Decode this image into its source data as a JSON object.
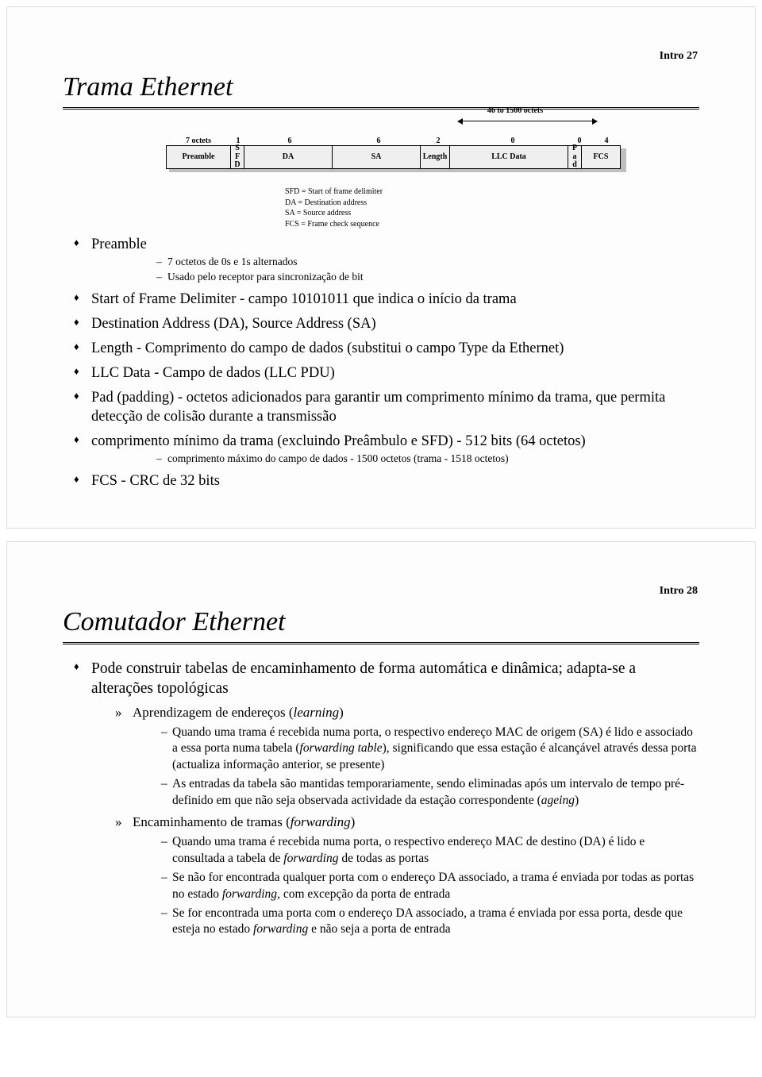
{
  "slide1": {
    "pageLabel": "Intro  27",
    "title": "Trama Ethernet",
    "frame": {
      "rangeLabel": "46 to 1500 octets",
      "headers": [
        "7 octets",
        "1",
        "6",
        "6",
        "2",
        "0",
        "0",
        "4"
      ],
      "cells": {
        "preamble": "Preamble",
        "sfd": "S\nF\nD",
        "da": "DA",
        "sa": "SA",
        "length": "Length",
        "llc": "LLC Data",
        "pad": "P\na\nd",
        "fcs": "FCS"
      },
      "widths": {
        "preamble": 82,
        "sfd": 18,
        "da": 112,
        "sa": 112,
        "length": 38,
        "llc": 150,
        "pad": 18,
        "fcs": 50
      },
      "colors": {
        "cellBg": "#efefef",
        "border": "#000000",
        "shadow": "#bfbfbf"
      }
    },
    "legend": [
      "SFD  =  Start of frame delimiter",
      "DA   =  Destination address",
      "SA   =  Source address",
      "FCS  =  Frame check sequence"
    ],
    "bullets": [
      {
        "text": "Preamble",
        "sub": [
          "7 octetos de 0s e 1s alternados",
          "Usado pelo receptor para sincronização de bit"
        ]
      },
      {
        "text": "Start of Frame Delimiter - campo 10101011 que indica o início da trama"
      },
      {
        "text": "Destination Address (DA), Source Address (SA)"
      },
      {
        "text": "Length - Comprimento do campo de dados (substitui o campo Type da Ethernet)"
      },
      {
        "text": "LLC Data - Campo de dados (LLC PDU)"
      },
      {
        "text": "Pad (padding) - octetos adicionados para garantir um comprimento mínimo da trama, que permita detecção de colisão durante a transmissão"
      },
      {
        "text": "comprimento mínimo da trama (excluindo Preâmbulo e SFD) - 512 bits (64 octetos)",
        "sub": [
          "comprimento máximo do campo de dados - 1500 octetos (trama - 1518 octetos)"
        ]
      },
      {
        "text": "FCS - CRC de 32 bits"
      }
    ]
  },
  "slide2": {
    "pageLabel": "Intro  28",
    "title": "Comutador Ethernet",
    "bullets": [
      {
        "text": "Pode construir tabelas de encaminhamento de forma automática e dinâmica; adapta-se a alterações topológicas",
        "arrow": [
          {
            "pre": "Aprendizagem de endereços (",
            "it": "learning",
            "post": ")",
            "sub": [
              {
                "parts": [
                  "Quando uma trama é recebida numa porta, o respectivo endereço MAC de origem (SA) é lido e associado a essa porta numa tabela (",
                  {
                    "it": "forwarding table"
                  },
                  "), significando que essa estação é alcançável através dessa porta (actualiza informação anterior, se presente)"
                ]
              },
              {
                "parts": [
                  "As entradas da tabela são mantidas temporariamente, sendo eliminadas após um intervalo de tempo pré-definido em que não seja observada actividade da estação correspondente (",
                  {
                    "it": "ageing"
                  },
                  ")"
                ]
              }
            ]
          },
          {
            "pre": "Encaminhamento de tramas (",
            "it": "forwarding",
            "post": ")",
            "sub": [
              {
                "parts": [
                  "Quando uma trama é recebida numa porta, o respectivo endereço MAC de destino (DA) é lido e consultada a tabela de ",
                  {
                    "it": "forwarding"
                  },
                  " de todas as portas"
                ]
              },
              {
                "parts": [
                  "Se não for encontrada qualquer porta com o endereço DA associado, a trama é enviada por todas as portas no estado ",
                  {
                    "it": "forwarding"
                  },
                  ", com excepção da porta de entrada"
                ]
              },
              {
                "parts": [
                  "Se for encontrada uma porta com o endereço DA associado, a trama é enviada por essa porta, desde que esteja no estado ",
                  {
                    "it": "forwarding"
                  },
                  " e não seja a porta de entrada"
                ]
              }
            ]
          }
        ]
      }
    ]
  }
}
